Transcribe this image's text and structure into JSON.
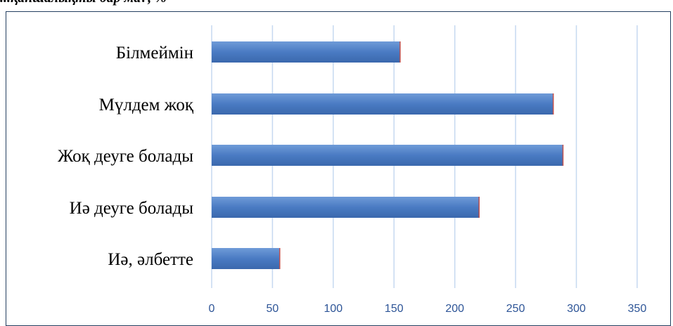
{
  "caption": "...қаншалықты бар ма?, %",
  "chart_data": {
    "type": "bar",
    "orientation": "horizontal",
    "title": "",
    "categories": [
      "Білмеймін",
      "Мүлдем жоқ",
      "Жоқ деуге болады",
      "Иә деуге болады",
      "Иә, әлбетте"
    ],
    "values": [
      155,
      281,
      289,
      220,
      56
    ],
    "xlim": [
      0,
      350
    ],
    "x_ticks": [
      "0",
      "50",
      "100",
      "150",
      "200",
      "250",
      "300",
      "350"
    ],
    "grid": true,
    "legend": "none",
    "colors": {
      "bar": "#4a7bc3",
      "bar_light": "#6f9bd8",
      "bar_edge": "#c0504d",
      "grid": "#c6d9f1",
      "tick_text": "#2e5597"
    }
  }
}
